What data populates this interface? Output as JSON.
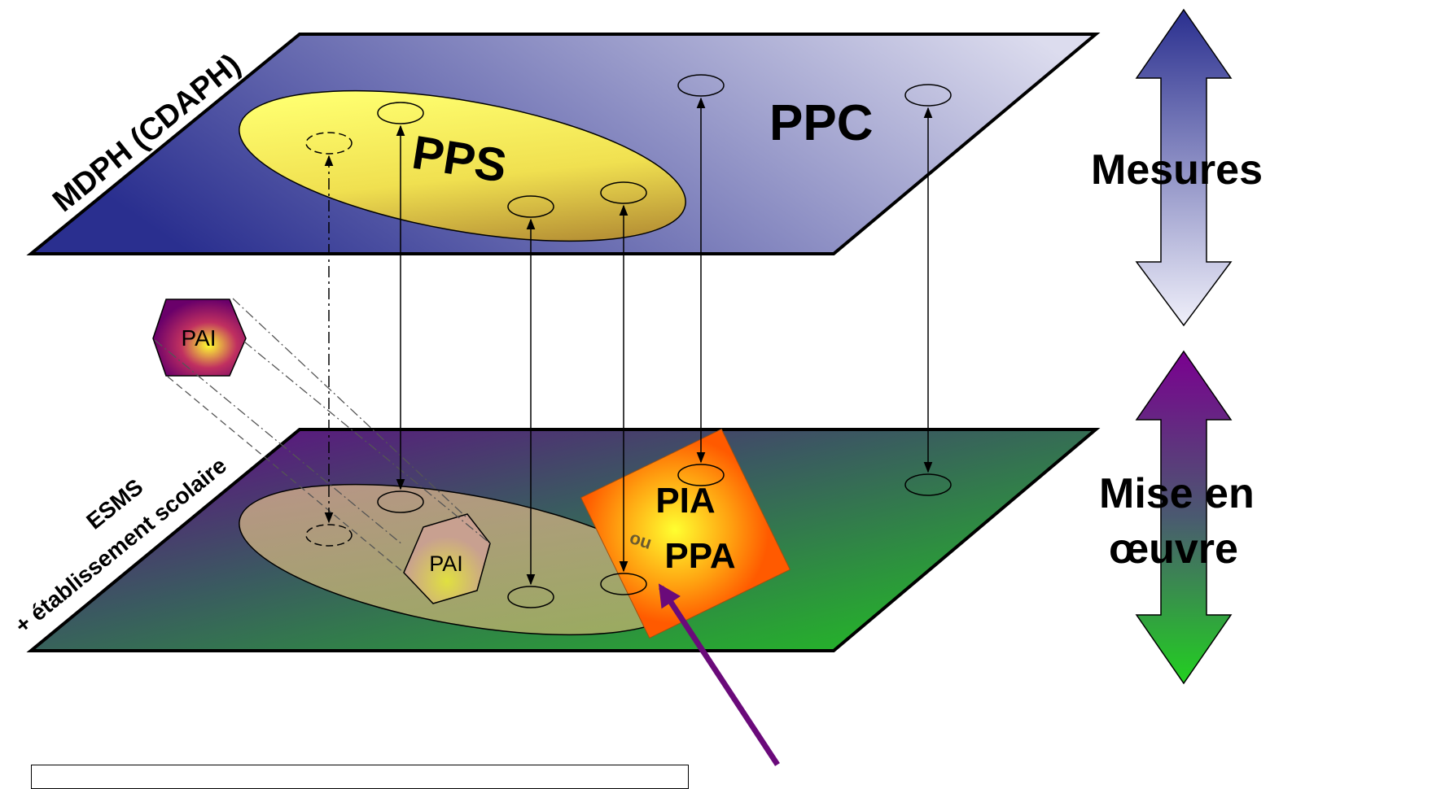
{
  "planes": {
    "top": {
      "label": "MDPH (CDAPH)",
      "ppc": "PPC",
      "pps": "PPS"
    },
    "bottom": {
      "label_line1": "ESMS",
      "label_line2": "+ établissement scolaire",
      "pia": "PIA",
      "ou": "ou",
      "ppa": "PPA"
    }
  },
  "pai": {
    "floating": "PAI",
    "projected": "PAI"
  },
  "arrows": {
    "top_label": "Mesures",
    "bottom_label_line1": "Mise en",
    "bottom_label_line2": "œuvre"
  },
  "colors": {
    "top_plane_dark": "#2a2f8f",
    "top_plane_light": "#d8d8ec",
    "pps_yellow": "#ffff66",
    "pps_brown": "#a07830",
    "bottom_plane_purple": "#660088",
    "bottom_plane_green": "#22c022",
    "pia_orange": "#ff6a00",
    "pia_yellow": "#ffe020",
    "pointer_purple": "#6a0a7a",
    "measures_arrow_blue": "#2a2f8f",
    "mise_arrow_purple": "#7a0090",
    "mise_arrow_green": "#22c022"
  }
}
